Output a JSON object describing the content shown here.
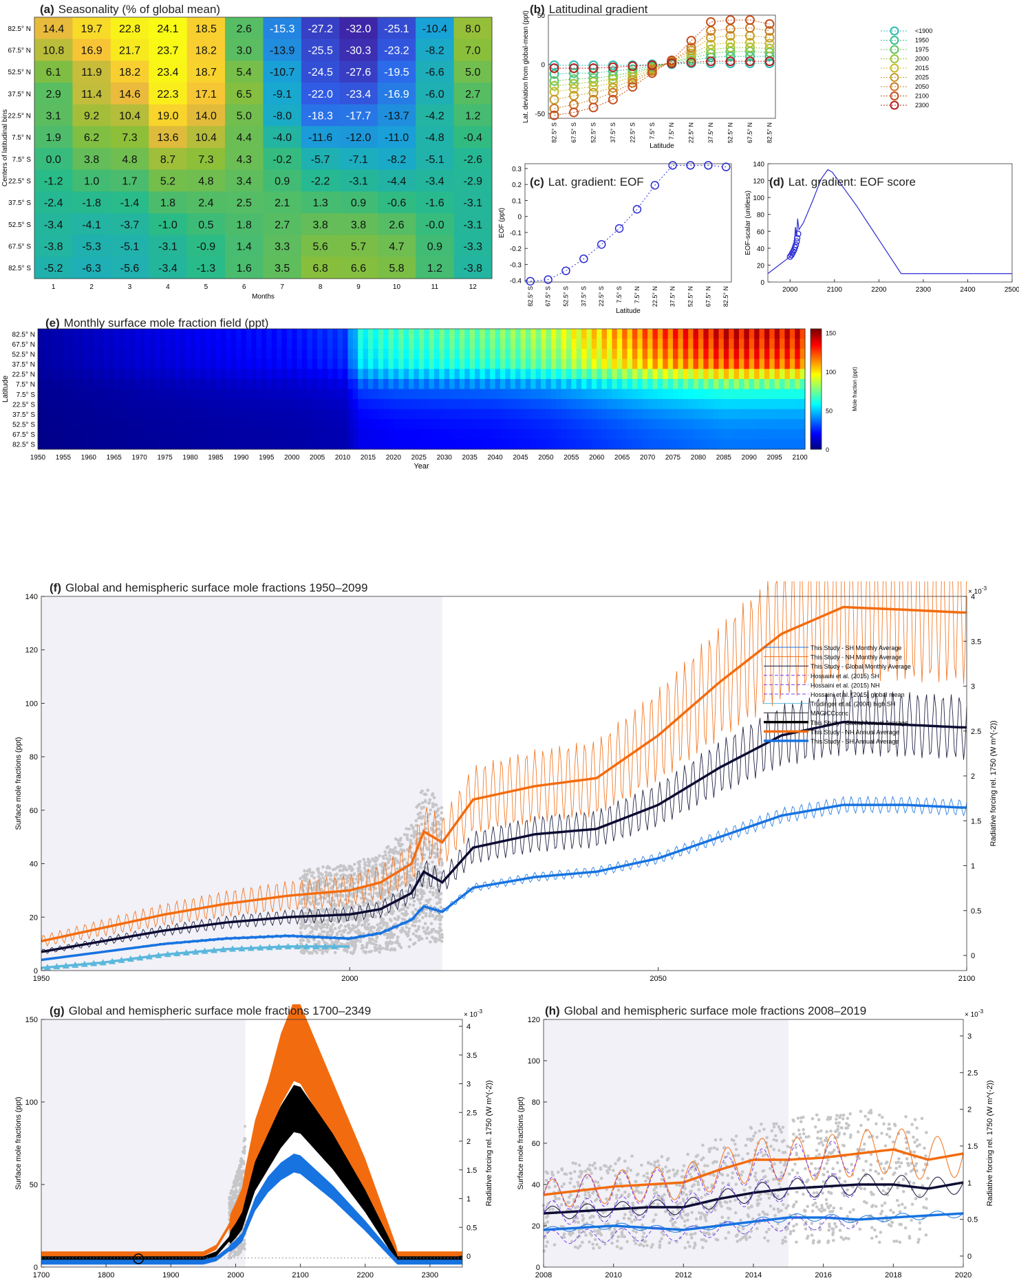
{
  "chart_data": [
    {
      "panel": "a",
      "type": "heatmap",
      "label": "(a)",
      "title": "Seasonality (% of global mean)",
      "xlabel": "Months",
      "ylabel": "Centers of latitudinal bins",
      "x": [
        "1",
        "2",
        "3",
        "4",
        "5",
        "6",
        "7",
        "8",
        "9",
        "10",
        "11",
        "12"
      ],
      "y": [
        "82.5° N",
        "67.5° N",
        "52.5° N",
        "37.5° N",
        "22.5° N",
        "7.5° N",
        "7.5° S",
        "22.5° S",
        "37.5° S",
        "52.5° S",
        "67.5° S",
        "82.5° S"
      ],
      "cell_labels": [
        [
          "14.4",
          "19.7",
          "22.8",
          "24.1",
          "18.5",
          "2.6",
          "-15.3",
          "-27.2",
          "-32.0",
          "-25.1",
          "-10.4",
          "8.0"
        ],
        [
          "10.8",
          "16.9",
          "21.7",
          "23.7",
          "18.2",
          "3.0",
          "-13.9",
          "-25.5",
          "-30.3",
          "-23.2",
          "-8.2",
          "7.0"
        ],
        [
          "6.1",
          "11.9",
          "18.2",
          "23.4",
          "18.7",
          "5.4",
          "-10.7",
          "-24.5",
          "-27.6",
          "-19.5",
          "-6.6",
          "5.0"
        ],
        [
          "2.9",
          "11.4",
          "14.6",
          "22.3",
          "17.1",
          "6.5",
          "-9.1",
          "-22.0",
          "-23.4",
          "-16.9",
          "-6.0",
          "2.7"
        ],
        [
          "3.1",
          "9.2",
          "10.4",
          "19.0",
          "14.0",
          "5.0",
          "-8.0",
          "-18.3",
          "-17.7",
          "-13.7",
          "-4.2",
          "1.2"
        ],
        [
          "1.9",
          "6.2",
          "7.3",
          "13.6",
          "10.4",
          "4.4",
          "-4.0",
          "-11.6",
          "-12.0",
          "-11.0",
          "-4.8",
          "-0.4"
        ],
        [
          "0.0",
          "3.8",
          "4.8",
          "8.7",
          "7.3",
          "4.3",
          "-0.2",
          "-5.7",
          "-7.1",
          "-8.2",
          "-5.1",
          "-2.6"
        ],
        [
          "-1.2",
          "1.0",
          "1.7",
          "5.2",
          "4.8",
          "3.4",
          "0.9",
          "-2.2",
          "-3.1",
          "-4.4",
          "-3.4",
          "-2.9"
        ],
        [
          "-2.4",
          "-1.8",
          "-1.4",
          "1.8",
          "2.4",
          "2.5",
          "2.1",
          "1.3",
          "0.9",
          "-0.6",
          "-1.6",
          "-3.1"
        ],
        [
          "-3.4",
          "-4.1",
          "-3.7",
          "-1.0",
          "0.5",
          "1.8",
          "2.7",
          "3.8",
          "3.8",
          "2.6",
          "-0.0",
          "-3.1"
        ],
        [
          "-3.8",
          "-5.3",
          "-5.1",
          "-3.1",
          "-0.9",
          "1.4",
          "3.3",
          "5.6",
          "5.7",
          "4.7",
          "0.9",
          "-3.3"
        ],
        [
          "-5.2",
          "-6.3",
          "-5.6",
          "-3.4",
          "-1.3",
          "1.6",
          "3.5",
          "6.8",
          "6.6",
          "5.8",
          "1.2",
          "-3.8"
        ]
      ]
    },
    {
      "panel": "b",
      "type": "line",
      "label": "(b)",
      "title": "Latitudinal gradient",
      "xlabel": "Latitude",
      "ylabel": "Lat. deviation from global-mean (ppt)",
      "ylim": [
        -55,
        50
      ],
      "yticks": [
        "-50",
        "0",
        "50"
      ],
      "xticks": [
        "82.5° S",
        "67.5° S",
        "52.5° S",
        "37.5° S",
        "22.5° S",
        "7.5° S",
        "7.5° N",
        "22.5° N",
        "37.5° N",
        "52.5° N",
        "67.5° N",
        "82.5° N"
      ],
      "x_lat": [
        -82.5,
        -67.5,
        -52.5,
        -37.5,
        -22.5,
        -7.5,
        7.5,
        22.5,
        37.5,
        52.5,
        67.5,
        82.5
      ],
      "legend": "right",
      "series": [
        {
          "name": "<1900",
          "color": "#2bb9b3",
          "values": [
            -1,
            -1,
            -1,
            -1,
            -1,
            0,
            0,
            1,
            1,
            1,
            1,
            1
          ]
        },
        {
          "name": "1950",
          "color": "#39bf8e",
          "values": [
            -10,
            -9,
            -9,
            -7,
            -5,
            -2,
            1,
            4,
            7,
            8,
            8,
            8
          ]
        },
        {
          "name": "1975",
          "color": "#62c463",
          "values": [
            -17,
            -15,
            -14,
            -12,
            -8,
            -3,
            2,
            6,
            11,
            13,
            13,
            12
          ]
        },
        {
          "name": "2000",
          "color": "#9bc43a",
          "values": [
            -22,
            -20,
            -18,
            -15,
            -10,
            -4,
            2,
            8,
            15,
            17,
            17,
            16
          ]
        },
        {
          "name": "2015",
          "color": "#c7bb2a",
          "values": [
            -28,
            -25,
            -23,
            -19,
            -13,
            -5,
            3,
            11,
            20,
            22,
            22,
            21
          ]
        },
        {
          "name": "2025",
          "color": "#c79b2a",
          "values": [
            -36,
            -32,
            -29,
            -24,
            -16,
            -6,
            3,
            14,
            27,
            29,
            29,
            27
          ]
        },
        {
          "name": "2050",
          "color": "#c97923",
          "values": [
            -45,
            -41,
            -36,
            -29,
            -19,
            -7,
            3,
            17,
            34,
            36,
            37,
            34
          ]
        },
        {
          "name": "2100",
          "color": "#c4501e",
          "values": [
            -52,
            -49,
            -44,
            -36,
            -23,
            -9,
            4,
            24,
            43,
            45,
            45,
            41
          ]
        },
        {
          "name": "2300",
          "color": "#b3201c",
          "values": [
            -4,
            -4,
            -4,
            -3,
            -2,
            -1,
            1,
            2,
            3,
            3,
            3,
            3
          ]
        }
      ]
    },
    {
      "panel": "c",
      "type": "line",
      "label": "(c)",
      "title": "Lat. gradient: EOF",
      "xlabel": "Latitude",
      "ylabel": "EOF (ppt)",
      "ylim": [
        -0.41,
        0.33
      ],
      "yticks": [
        "-0.4",
        "-0.3",
        "-0.2",
        "-0.1",
        "0",
        "0.1",
        "0.2",
        "0.3"
      ],
      "xticks": [
        "82.5° S",
        "67.5° S",
        "52.5° S",
        "37.5° S",
        "22.5° S",
        "7.5° S",
        "7.5° N",
        "22.5° N",
        "37.5° N",
        "52.5° N",
        "67.5° N",
        "82.5° N"
      ],
      "x_lat": [
        -82.5,
        -67.5,
        -52.5,
        -37.5,
        -22.5,
        -7.5,
        7.5,
        22.5,
        37.5,
        52.5,
        67.5,
        82.5
      ],
      "values": [
        -0.405,
        -0.395,
        -0.34,
        -0.265,
        -0.175,
        -0.075,
        0.045,
        0.195,
        0.32,
        0.32,
        0.32,
        0.31
      ],
      "color": "#2a2ad4"
    },
    {
      "panel": "d",
      "type": "line",
      "label": "(d)",
      "title": "Lat. gradient: EOF score",
      "xlabel": "",
      "ylabel": "EOF-scalar (unitless)",
      "xlim": [
        1950,
        2500
      ],
      "ylim": [
        0,
        140
      ],
      "xticks": [
        "2000",
        "2100",
        "2200",
        "2300",
        "2400",
        "2500"
      ],
      "yticks": [
        "0",
        "20",
        "40",
        "60",
        "80",
        "100",
        "120",
        "140"
      ],
      "x": [
        1950,
        1970,
        1990,
        2000,
        2005,
        2010,
        2012,
        2015,
        2017,
        2020,
        2030,
        2050,
        2070,
        2085,
        2095,
        2150,
        2200,
        2250,
        2500
      ],
      "values": [
        10,
        18,
        26,
        30,
        35,
        45,
        65,
        55,
        75,
        62,
        70,
        95,
        122,
        133,
        130,
        90,
        50,
        10,
        10
      ],
      "markers_x": [
        2000,
        2003,
        2005,
        2007,
        2009,
        2011,
        2013,
        2015,
        2016,
        2018
      ],
      "markers_y": [
        30,
        32,
        34,
        36,
        38,
        41,
        44,
        48,
        52,
        57
      ],
      "color": "#2a2ad4"
    },
    {
      "panel": "e",
      "type": "heatmap",
      "label": "(e)",
      "title": "Monthly surface mole fraction field (ppt)",
      "xlabel": "Year",
      "ylabel": "Latitude",
      "colorbar_label": "Mole fraction (ppt)",
      "colorbar_ticks": [
        "0",
        "50",
        "100",
        "150"
      ],
      "xlim": [
        1950,
        2101
      ],
      "xticks": [
        "1950",
        "1955",
        "1960",
        "1965",
        "1970",
        "1975",
        "1980",
        "1985",
        "1990",
        "1995",
        "2000",
        "2005",
        "2010",
        "2015",
        "2020",
        "2025",
        "2030",
        "2035",
        "2040",
        "2045",
        "2050",
        "2055",
        "2060",
        "2065",
        "2070",
        "2075",
        "2080",
        "2085",
        "2090",
        "2095",
        "2100"
      ],
      "yticks": [
        "82.5° N",
        "67.5° N",
        "52.5° N",
        "37.5° N",
        "22.5° N",
        "7.5° N",
        "7.5° S",
        "22.5° S",
        "37.5° S",
        "52.5° S",
        "67.5° S",
        "82.5° S"
      ]
    },
    {
      "panel": "f",
      "type": "line",
      "label": "(f)",
      "title": "Global and hemispheric surface mole fractions 1950–2099",
      "xlabel": "",
      "ylabel": "Surface mole fractions (ppt)",
      "ylabel_right": "Radiative forcing rel. 1750 (W m^(-2))",
      "right_exponent": "× 10",
      "right_exponent_power": "-3",
      "xlim": [
        1950,
        2100
      ],
      "ylim": [
        0,
        140
      ],
      "xticks": [
        "1950",
        "2000",
        "2050",
        "2100"
      ],
      "yticks": [
        "0",
        "20",
        "40",
        "60",
        "80",
        "100",
        "120",
        "140"
      ],
      "yticks_right": [
        "0",
        "0.5",
        "1",
        "1.5",
        "2",
        "2.5",
        "3",
        "3.5",
        "4"
      ],
      "shade_end": 2015,
      "legend": "upper right",
      "legend_entries": [
        "This Study - SH Monthly Average",
        "This Study - NH Monthly Average",
        "This Study - Global Monthly Average",
        "Hossaini et al. (2015) SH",
        "Hossaini et al. (2015) NH",
        "Hossaini et al. (2015) global mean",
        "Trudinger et al. (2004) high SH",
        "MAGICCconc",
        "This Study - Global Annual Average",
        "This Study - NH Annual Average",
        "This Study - SH Annual Average"
      ],
      "x": [
        1950,
        1960,
        1970,
        1980,
        1990,
        2000,
        2005,
        2010,
        2012,
        2015,
        2020,
        2030,
        2040,
        2050,
        2060,
        2070,
        2080,
        2090,
        2099
      ],
      "series": [
        {
          "name": "This Study - NH Annual Average",
          "color": "#f26c0f",
          "values": [
            11,
            16,
            21,
            25,
            28,
            30,
            33,
            40,
            52,
            48,
            64,
            69,
            72,
            88,
            108,
            126,
            136,
            135,
            134
          ]
        },
        {
          "name": "This Study - Global Annual Average",
          "color": "#0c0c33",
          "values": [
            7,
            11,
            15,
            18,
            20,
            21,
            23,
            29,
            37,
            33,
            46,
            51,
            53,
            62,
            76,
            88,
            93,
            92,
            91
          ]
        },
        {
          "name": "This Study - SH Annual Average",
          "color": "#1773e0",
          "values": [
            4,
            7,
            10,
            12,
            13,
            12,
            14,
            19,
            24,
            22,
            31,
            35,
            37,
            42,
            50,
            58,
            62,
            62,
            61
          ]
        },
        {
          "name": "Trudinger et al. (2004) high SH",
          "color": "#5bb7dc",
          "values": [
            1,
            3,
            6,
            8,
            9,
            9,
            null,
            null,
            null,
            null,
            null,
            null,
            null,
            null,
            null,
            null,
            null,
            null,
            null
          ]
        }
      ],
      "seasonal_amplitude": {
        "NH": 6,
        "Global": 4,
        "SH": 1.5
      }
    },
    {
      "panel": "g",
      "type": "line",
      "label": "(g)",
      "title": "Global and hemispheric surface mole fractions 1700–2349",
      "xlabel": "",
      "ylabel": "Surface mole fractions (ppt)",
      "ylabel_right": "Radiative forcing rel. 1750 (W m^(-2))",
      "right_exponent": "× 10",
      "right_exponent_power": "-3",
      "xlim": [
        1700,
        2350
      ],
      "ylim": [
        0,
        150
      ],
      "xticks": [
        "1700",
        "1800",
        "1900",
        "2000",
        "2100",
        "2200",
        "2300"
      ],
      "yticks": [
        "0",
        "50",
        "100",
        "150"
      ],
      "yticks_right": [
        "0",
        "0.5",
        "1",
        "1.5",
        "2",
        "2.5",
        "3",
        "3.5",
        "4"
      ],
      "shade_end": 2015,
      "x": [
        1700,
        1950,
        1970,
        1990,
        2000,
        2010,
        2015,
        2030,
        2050,
        2070,
        2090,
        2100,
        2150,
        2200,
        2250,
        2350
      ],
      "series": [
        {
          "name": "NH",
          "color": "#f26c0f",
          "values": [
            8,
            8,
            12,
            25,
            32,
            40,
            50,
            75,
            95,
            120,
            137,
            135,
            95,
            55,
            8,
            8
          ]
        },
        {
          "name": "Global",
          "color": "#000000",
          "values": [
            5,
            5,
            8,
            17,
            22,
            28,
            35,
            55,
            70,
            85,
            96,
            95,
            70,
            40,
            5,
            5
          ]
        },
        {
          "name": "SH",
          "color": "#1773e0",
          "values": [
            3,
            3,
            5,
            11,
            14,
            18,
            23,
            38,
            50,
            58,
            63,
            62,
            45,
            25,
            3,
            3
          ]
        }
      ]
    },
    {
      "panel": "h",
      "type": "line",
      "label": "(h)",
      "title": "Global and hemispheric surface mole fractions 2008–2019",
      "xlabel": "",
      "ylabel": "Surface mole fractions (ppt)",
      "ylabel_right": "Radiative forcing rel. 1750 (W m^(-2))",
      "right_exponent": "× 10",
      "right_exponent_power": "-3",
      "xlim": [
        2008,
        2020
      ],
      "ylim": [
        0,
        120
      ],
      "xticks": [
        "2008",
        "2010",
        "2012",
        "2014",
        "2016",
        "2018",
        "2020"
      ],
      "yticks": [
        "0",
        "20",
        "40",
        "60",
        "80",
        "100",
        "120"
      ],
      "yticks_right": [
        "0",
        "0.5",
        "1",
        "1.5",
        "2",
        "2.5",
        "3"
      ],
      "shade_end": 2015,
      "x": [
        2008,
        2009,
        2010,
        2011,
        2012,
        2013,
        2014,
        2015,
        2016,
        2017,
        2018,
        2019,
        2020
      ],
      "series": [
        {
          "name": "NH",
          "color": "#f26c0f",
          "values": [
            35,
            37,
            39,
            40,
            41,
            47,
            52,
            52,
            53,
            55,
            57,
            52,
            55
          ]
        },
        {
          "name": "Global",
          "color": "#0c0c33",
          "values": [
            26,
            27,
            28,
            29,
            29,
            33,
            36,
            38,
            39,
            40,
            40,
            38,
            41
          ]
        },
        {
          "name": "SH",
          "color": "#1773e0",
          "values": [
            18,
            19,
            20,
            19,
            18,
            20,
            22,
            24,
            24,
            23,
            24,
            25,
            26
          ]
        }
      ]
    }
  ]
}
